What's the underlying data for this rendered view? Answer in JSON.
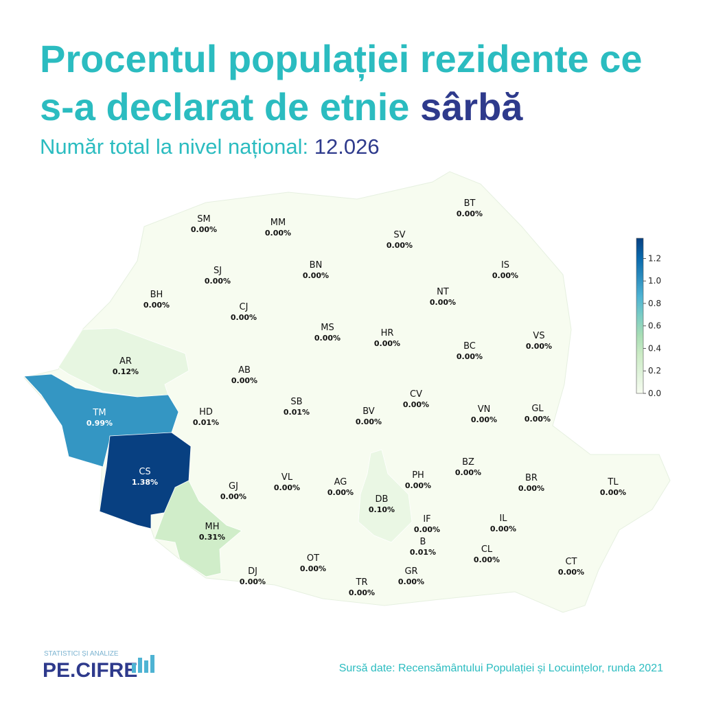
{
  "title": {
    "line1": "Procentul populației rezidente ce",
    "line2": "s-a declarat de etnie",
    "highlight": "sârbă"
  },
  "subtitle": {
    "label": "Număr total la nivel național:",
    "value": "12.026"
  },
  "map": {
    "counties": [
      {
        "code": "SM",
        "value": 0,
        "label": "0.00%"
      },
      {
        "code": "MM",
        "value": 0,
        "label": "0.00%"
      },
      {
        "code": "BT",
        "value": 0,
        "label": "0.00%"
      },
      {
        "code": "SV",
        "value": 0,
        "label": "0.00%"
      },
      {
        "code": "BH",
        "value": 0,
        "label": "0.00%"
      },
      {
        "code": "SJ",
        "value": 0,
        "label": "0.00%"
      },
      {
        "code": "BN",
        "value": 0,
        "label": "0.00%"
      },
      {
        "code": "IS",
        "value": 0,
        "label": "0.00%"
      },
      {
        "code": "CJ",
        "value": 0,
        "label": "0.00%"
      },
      {
        "code": "NT",
        "value": 0,
        "label": "0.00%"
      },
      {
        "code": "MS",
        "value": 0,
        "label": "0.00%"
      },
      {
        "code": "HR",
        "value": 0,
        "label": "0.00%"
      },
      {
        "code": "BC",
        "value": 0,
        "label": "0.00%"
      },
      {
        "code": "VS",
        "value": 0,
        "label": "0.00%"
      },
      {
        "code": "AR",
        "value": 0.12,
        "label": "0.12%"
      },
      {
        "code": "AB",
        "value": 0,
        "label": "0.00%"
      },
      {
        "code": "TM",
        "value": 0.99,
        "label": "0.99%"
      },
      {
        "code": "HD",
        "value": 0.01,
        "label": "0.01%"
      },
      {
        "code": "SB",
        "value": 0.01,
        "label": "0.01%"
      },
      {
        "code": "BV",
        "value": 0,
        "label": "0.00%"
      },
      {
        "code": "CV",
        "value": 0,
        "label": "0.00%"
      },
      {
        "code": "VN",
        "value": 0,
        "label": "0.00%"
      },
      {
        "code": "GL",
        "value": 0,
        "label": "0.00%"
      },
      {
        "code": "CS",
        "value": 1.38,
        "label": "1.38%"
      },
      {
        "code": "GJ",
        "value": 0,
        "label": "0.00%"
      },
      {
        "code": "VL",
        "value": 0,
        "label": "0.00%"
      },
      {
        "code": "AG",
        "value": 0,
        "label": "0.00%"
      },
      {
        "code": "PH",
        "value": 0,
        "label": "0.00%"
      },
      {
        "code": "BZ",
        "value": 0,
        "label": "0.00%"
      },
      {
        "code": "BR",
        "value": 0,
        "label": "0.00%"
      },
      {
        "code": "TL",
        "value": 0,
        "label": "0.00%"
      },
      {
        "code": "DB",
        "value": 0.1,
        "label": "0.10%"
      },
      {
        "code": "MH",
        "value": 0.31,
        "label": "0.31%"
      },
      {
        "code": "IF",
        "value": 0,
        "label": "0.00%"
      },
      {
        "code": "IL",
        "value": 0,
        "label": "0.00%"
      },
      {
        "code": "B",
        "value": 0.01,
        "label": "0.01%"
      },
      {
        "code": "CL",
        "value": 0,
        "label": "0.00%"
      },
      {
        "code": "CT",
        "value": 0,
        "label": "0.00%"
      },
      {
        "code": "OT",
        "value": 0,
        "label": "0.00%"
      },
      {
        "code": "DJ",
        "value": 0,
        "label": "0.00%"
      },
      {
        "code": "GR",
        "value": 0,
        "label": "0.00%"
      },
      {
        "code": "TR",
        "value": 0,
        "label": "0.00%"
      }
    ],
    "colorscale": [
      "#f7fcf0",
      "#e0f3db",
      "#ccebc5",
      "#a8ddb5",
      "#7bccc4",
      "#4eb3d3",
      "#2b8cbe",
      "#0868ac",
      "#084081"
    ],
    "clim": [
      0,
      1.38
    ],
    "cticks": [
      {
        "value": 0,
        "label": "0.0"
      },
      {
        "value": 0.2,
        "label": "0.2"
      },
      {
        "value": 0.4,
        "label": "0.4"
      },
      {
        "value": 0.6,
        "label": "0.6"
      },
      {
        "value": 0.8,
        "label": "0.8"
      },
      {
        "value": 1,
        "label": "1.0"
      },
      {
        "value": 1.2,
        "label": "1.2"
      }
    ]
  },
  "logo": {
    "tagline": "STATISTICI ȘI ANALIZE",
    "name": "PE.CIFRE"
  },
  "source": "Sursă date: Recensământului Populației și Locuințelor, runda 2021"
}
